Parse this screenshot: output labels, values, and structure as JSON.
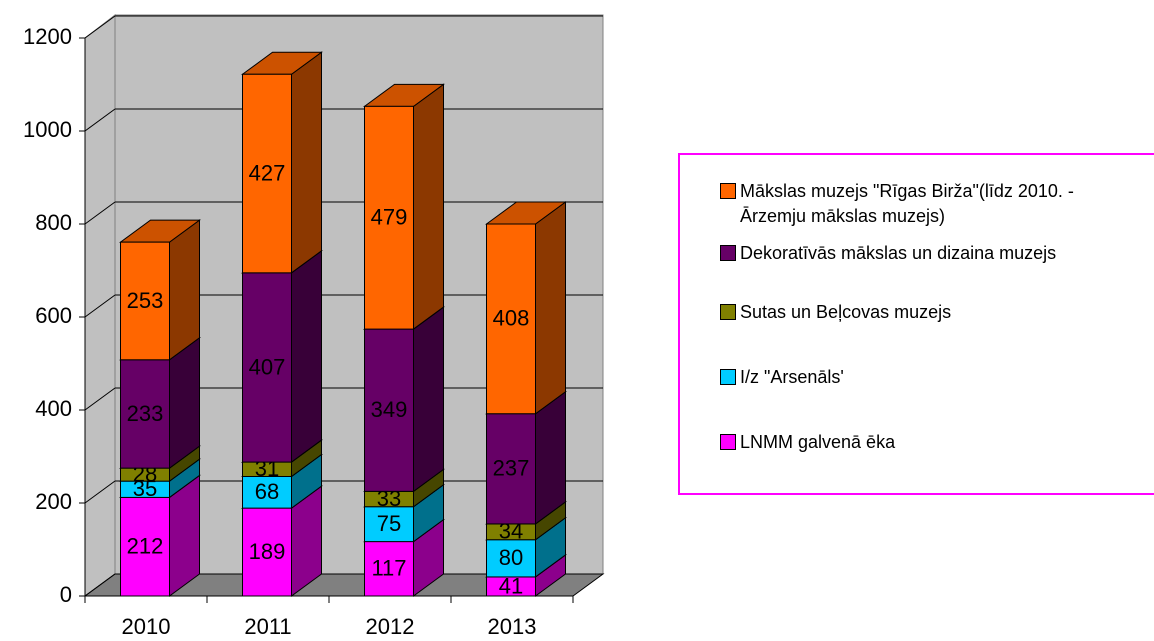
{
  "chart_data": {
    "type": "bar3d_stacked",
    "categories": [
      "2010",
      "2011",
      "2012",
      "2013"
    ],
    "series": [
      {
        "name": "LNMM galvenā ēka",
        "color": "#ff00ff",
        "values": [
          212,
          189,
          117,
          41
        ]
      },
      {
        "name": "I/z \"Arsenāls'",
        "color": "#00ccff",
        "values": [
          35,
          68,
          75,
          80
        ]
      },
      {
        "name": "Sutas un Beļcovas muzejs",
        "color": "#808000",
        "values": [
          28,
          31,
          33,
          34
        ]
      },
      {
        "name": "Dekoratīvās mākslas un dizaina muzejs",
        "color": "#660066",
        "values": [
          233,
          407,
          349,
          237
        ]
      },
      {
        "name": "Mākslas muzejs \"Rīgas Birža\"(līdz 2010. - Ārzemju mākslas muzejs)",
        "color": "#ff6600",
        "values": [
          253,
          427,
          479,
          408
        ]
      }
    ],
    "ylim": [
      0,
      1200
    ],
    "yticks": [
      0,
      200,
      400,
      600,
      800,
      1000,
      1200
    ],
    "grid": true,
    "legend": "right"
  }
}
